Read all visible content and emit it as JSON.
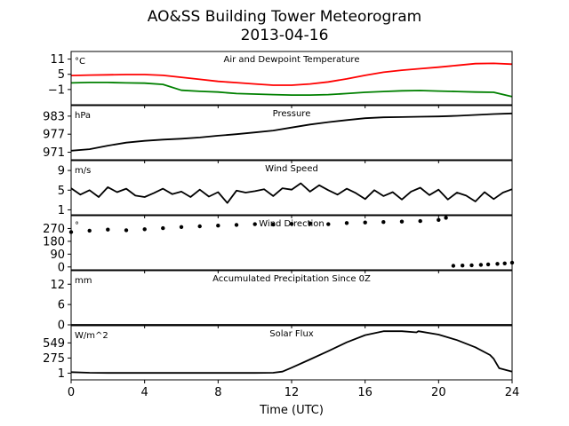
{
  "figure": {
    "title_line1": "AO&SS Building Tower Meteorogram",
    "title_line2": "2013-04-16",
    "xlabel": "Time (UTC)",
    "xticks": [
      0,
      4,
      8,
      12,
      16,
      20,
      24
    ],
    "xlim": [
      0,
      24
    ]
  },
  "chart_data": [
    {
      "type": "line",
      "title": "Air and Dewpoint Temperature",
      "unit": "°C",
      "ylim": [
        -7,
        14
      ],
      "yticks": [
        11,
        5,
        -1
      ],
      "ytick_labels": [
        "11",
        "5",
        "−1"
      ],
      "x": [
        0,
        1,
        2,
        3,
        4,
        5,
        6,
        7,
        8,
        9,
        10,
        11,
        12,
        13,
        14,
        15,
        16,
        17,
        18,
        19,
        20,
        21,
        22,
        23,
        24
      ],
      "series": [
        {
          "color": "#ff0000",
          "values": [
            4.5,
            4.7,
            4.8,
            4.9,
            4.9,
            4.6,
            3.8,
            3.0,
            2.2,
            1.7,
            1.2,
            0.7,
            0.7,
            1.2,
            2.0,
            3.2,
            4.6,
            5.8,
            6.6,
            7.2,
            7.8,
            8.5,
            9.2,
            9.3,
            9.0
          ]
        },
        {
          "color": "#008000",
          "values": [
            1.6,
            1.8,
            1.8,
            1.6,
            1.5,
            1.0,
            -1.3,
            -1.7,
            -2.0,
            -2.6,
            -2.8,
            -3.0,
            -3.2,
            -3.2,
            -3.0,
            -2.6,
            -2.1,
            -1.8,
            -1.5,
            -1.4,
            -1.6,
            -1.8,
            -2.0,
            -2.1,
            -3.8
          ]
        }
      ]
    },
    {
      "type": "line",
      "title": "Pressure",
      "unit": "hPa",
      "ylim": [
        968.5,
        986.5
      ],
      "yticks": [
        983,
        977,
        971
      ],
      "ytick_labels": [
        "983",
        "977",
        "971"
      ],
      "x": [
        0,
        1,
        2,
        3,
        4,
        5,
        6,
        7,
        8,
        9,
        10,
        11,
        12,
        13,
        14,
        15,
        16,
        17,
        18,
        19,
        20,
        21,
        22,
        23,
        24
      ],
      "series": [
        {
          "color": "#000000",
          "values": [
            971.5,
            972.0,
            973.2,
            974.2,
            974.8,
            975.2,
            975.5,
            975.9,
            976.5,
            977.0,
            977.6,
            978.2,
            979.2,
            980.2,
            981.0,
            981.7,
            982.3,
            982.6,
            982.7,
            982.8,
            982.9,
            983.1,
            983.4,
            983.7,
            983.9
          ]
        }
      ]
    },
    {
      "type": "line",
      "title": "Wind Speed",
      "unit": "m/s",
      "ylim": [
        0,
        11
      ],
      "yticks": [
        9,
        5,
        1
      ],
      "ytick_labels": [
        "9",
        "5",
        "1"
      ],
      "x": [
        0,
        0.5,
        1,
        1.5,
        2,
        2.5,
        3,
        3.5,
        4,
        4.5,
        5,
        5.5,
        6,
        6.5,
        7,
        7.5,
        8,
        8.5,
        9,
        9.5,
        10,
        10.5,
        11,
        11.5,
        12,
        12.5,
        13,
        13.5,
        14,
        14.5,
        15,
        15.5,
        16,
        16.5,
        17,
        17.5,
        18,
        18.5,
        19,
        19.5,
        20,
        20.5,
        21,
        21.5,
        22,
        22.5,
        23,
        23.5,
        24
      ],
      "series": [
        {
          "color": "#000000",
          "values": [
            5.4,
            4.1,
            5.0,
            3.6,
            5.6,
            4.6,
            5.3,
            3.9,
            3.6,
            4.4,
            5.3,
            4.2,
            4.7,
            3.6,
            5.1,
            3.7,
            4.6,
            2.4,
            4.9,
            4.5,
            4.8,
            5.2,
            3.8,
            5.4,
            5.1,
            6.4,
            4.7,
            6.0,
            5.0,
            4.1,
            5.3,
            4.4,
            3.2,
            5.0,
            3.8,
            4.6,
            3.1,
            4.7,
            5.5,
            4.0,
            5.1,
            3.1,
            4.5,
            3.9,
            2.7,
            4.6,
            3.2,
            4.5,
            5.2
          ]
        }
      ]
    },
    {
      "type": "scatter",
      "title": "Wind Direction",
      "unit": "°",
      "ylim": [
        -20,
        360
      ],
      "yticks": [
        270,
        180,
        90,
        0
      ],
      "ytick_labels": [
        "270",
        "180",
        "90",
        "0"
      ],
      "x": [
        0,
        1,
        2,
        3,
        4,
        5,
        6,
        7,
        8,
        9,
        10,
        11,
        12,
        13,
        14,
        15,
        16,
        17,
        18,
        19,
        20,
        20.4,
        20.8,
        21.3,
        21.8,
        22.3,
        22.7,
        23.2,
        23.6,
        24
      ],
      "series": [
        {
          "color": "#000000",
          "values": [
            245,
            255,
            262,
            258,
            265,
            272,
            280,
            285,
            290,
            295,
            300,
            298,
            302,
            305,
            300,
            308,
            312,
            315,
            318,
            322,
            330,
            345,
            8,
            10,
            12,
            15,
            18,
            22,
            25,
            30
          ]
        }
      ]
    },
    {
      "type": "line",
      "title": "Accumulated Precipitation Since 0Z",
      "unit": "mm",
      "ylim": [
        0,
        16
      ],
      "yticks": [
        12,
        6,
        0
      ],
      "ytick_labels": [
        "12",
        "6",
        "0"
      ],
      "x": [
        0,
        24
      ],
      "series": [
        {
          "color": "#000000",
          "values": [
            0,
            0
          ]
        }
      ]
    },
    {
      "type": "line",
      "title": "Solar Flux",
      "unit": "W/m^2",
      "ylim": [
        -120,
        860
      ],
      "yticks": [
        549,
        275,
        1
      ],
      "ytick_labels": [
        "549",
        "275",
        "1"
      ],
      "x": [
        0,
        1,
        2,
        3,
        4,
        5,
        6,
        7,
        8,
        9,
        10,
        11,
        11.5,
        12,
        13,
        14,
        15,
        16,
        17,
        18,
        18.8,
        18.9,
        20,
        21,
        22,
        22.8,
        23,
        23.3,
        24
      ],
      "series": [
        {
          "color": "#000000",
          "values": [
            20,
            8,
            5,
            5,
            5,
            5,
            5,
            5,
            5,
            5,
            5,
            8,
            30,
            100,
            250,
            400,
            560,
            690,
            760,
            760,
            740,
            760,
            700,
            600,
            470,
            330,
            260,
            90,
            30
          ]
        }
      ]
    }
  ]
}
